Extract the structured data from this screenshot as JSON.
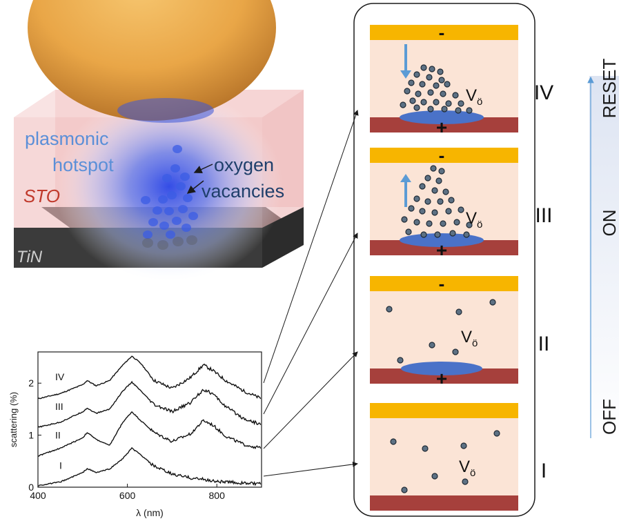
{
  "schematic": {
    "hotspot_label_line1": "plasmonic",
    "hotspot_label_line2": "hotspot",
    "vacancy_label_line1": "oxygen",
    "vacancy_label_line2": "vacancies",
    "oxide_label": "STO",
    "substrate_label": "TiN",
    "colors": {
      "particle": "#e8a84a",
      "oxide": "#f2c4c4",
      "substrate": "#3c3c3c",
      "hotspot": "#3a5de0",
      "label_blue": "#5b8fd8",
      "label_red": "#c0392b"
    }
  },
  "chart_data": {
    "type": "line",
    "xlabel": "λ (nm)",
    "ylabel": "scattering (%)",
    "xlim": [
      400,
      900
    ],
    "ylim": [
      0,
      2.6
    ],
    "xticks": [
      "400",
      "600",
      "800"
    ],
    "yticks": [
      "0",
      "1",
      "2"
    ],
    "x": [
      400,
      450,
      500,
      510,
      530,
      560,
      590,
      610,
      630,
      660,
      700,
      740,
      770,
      790,
      820,
      860,
      900
    ],
    "series": [
      {
        "name": "IV",
        "values": [
          1.7,
          1.8,
          1.97,
          2.05,
          1.95,
          2.05,
          2.35,
          2.52,
          2.38,
          2.05,
          1.9,
          2.1,
          2.35,
          2.25,
          2.05,
          1.85,
          1.7
        ]
      },
      {
        "name": "III",
        "values": [
          1.15,
          1.25,
          1.45,
          1.52,
          1.42,
          1.5,
          1.85,
          2.02,
          1.85,
          1.58,
          1.45,
          1.62,
          1.88,
          1.8,
          1.55,
          1.32,
          1.2
        ]
      },
      {
        "name": "II",
        "values": [
          0.6,
          0.75,
          0.95,
          1.05,
          0.92,
          0.8,
          1.25,
          1.45,
          1.28,
          1.05,
          0.88,
          1.02,
          1.28,
          1.2,
          0.98,
          0.82,
          0.75
        ]
      },
      {
        "name": "I",
        "values": [
          0.03,
          0.1,
          0.28,
          0.36,
          0.28,
          0.35,
          0.55,
          0.75,
          0.62,
          0.4,
          0.25,
          0.18,
          0.15,
          0.12,
          0.1,
          0.08,
          0.06
        ]
      }
    ],
    "series_labels": [
      "IV",
      "III",
      "II",
      "I"
    ]
  },
  "states": [
    {
      "roman": "IV",
      "top_sign": "-",
      "bottom_sign": "+",
      "vacancy_label": "V",
      "vacancy_sub": "ö",
      "arrow": "down"
    },
    {
      "roman": "III",
      "top_sign": "-",
      "bottom_sign": "+",
      "vacancy_label": "V",
      "vacancy_sub": "ö",
      "arrow": "up"
    },
    {
      "roman": "II",
      "top_sign": "-",
      "bottom_sign": "+",
      "vacancy_label": "V",
      "vacancy_sub": "ö",
      "arrow": ""
    },
    {
      "roman": "I",
      "top_sign": "",
      "bottom_sign": "",
      "vacancy_label": "V",
      "vacancy_sub": "ö",
      "arrow": ""
    }
  ],
  "axis_labels": {
    "top": "RESET",
    "middle": "ON",
    "bottom": "OFF"
  },
  "colors": {
    "electrode_top": "#f7b500",
    "electrode_bottom": "#a6403c",
    "cell_bg": "#fbe4d6",
    "filament": "#4a72c8",
    "vacancy": "#5d7184",
    "arrow_blue": "#5b9bd5"
  }
}
